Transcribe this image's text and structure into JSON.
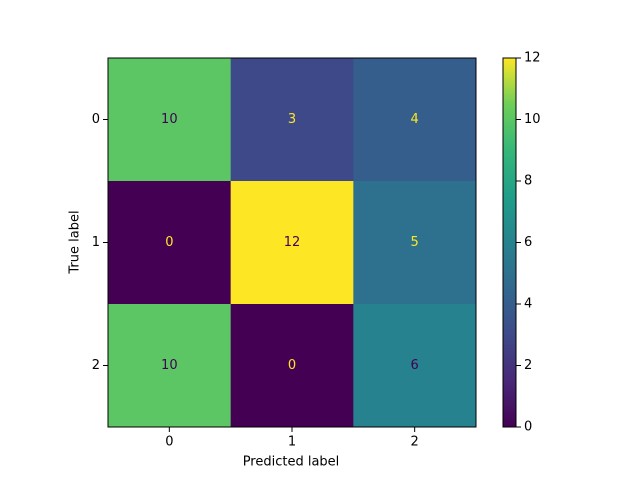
{
  "chart_data": {
    "type": "heatmap",
    "xlabel": "Predicted label",
    "ylabel": "True label",
    "x_categories": [
      "0",
      "1",
      "2"
    ],
    "y_categories": [
      "0",
      "1",
      "2"
    ],
    "values": [
      [
        10,
        3,
        4
      ],
      [
        0,
        12,
        5
      ],
      [
        10,
        0,
        6
      ]
    ],
    "colormap": "viridis",
    "colorbar_lim": [
      0,
      12
    ],
    "colorbar_ticks": [
      0,
      2,
      4,
      6,
      8,
      10,
      12
    ]
  }
}
